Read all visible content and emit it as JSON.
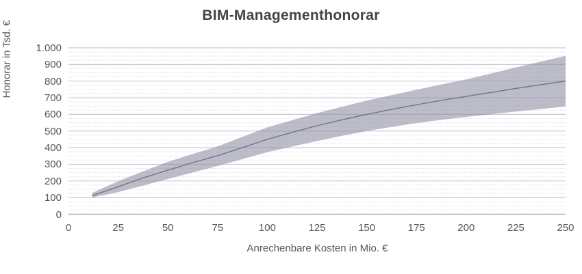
{
  "chart_data": {
    "type": "area",
    "title": "BIM-Managementhonorar",
    "xlabel": "Anrechenbare Kosten in Mio. €",
    "ylabel": "Honorar in Tsd. €",
    "xlim": [
      0,
      250
    ],
    "ylim": [
      0,
      1000
    ],
    "x_ticks": [
      0,
      25,
      50,
      75,
      100,
      125,
      150,
      175,
      200,
      225,
      250
    ],
    "x_tick_labels": [
      "0",
      "25",
      "50",
      "75",
      "100",
      "125",
      "150",
      "175",
      "200",
      "225",
      "250"
    ],
    "y_ticks": [
      0,
      100,
      200,
      300,
      400,
      500,
      600,
      700,
      800,
      900,
      1000
    ],
    "y_tick_labels": [
      "0",
      "100",
      "200",
      "300",
      "400",
      "500",
      "600",
      "700",
      "800",
      "900",
      "1.000"
    ],
    "grid": {
      "major_interval": 100,
      "minor_interval": 25,
      "vertical_gridlines": false
    },
    "legend": "none",
    "x": [
      12,
      25,
      37.5,
      50,
      62.5,
      75,
      87.5,
      100,
      112.5,
      125,
      137.5,
      150,
      162.5,
      175,
      187.5,
      200,
      212.5,
      225,
      237.5,
      250
    ],
    "series": [
      {
        "name": "lower-bound",
        "values": [
          100,
          133,
          172,
          212,
          251,
          290,
          331,
          373,
          407,
          440,
          471,
          500,
          525,
          548,
          567,
          585,
          601,
          617,
          632,
          648
        ]
      },
      {
        "name": "mid-line",
        "values": [
          112,
          165,
          218,
          265,
          310,
          352,
          401,
          450,
          492,
          532,
          567,
          600,
          630,
          658,
          684,
          708,
          732,
          756,
          778,
          800
        ]
      },
      {
        "name": "upper-bound",
        "values": [
          128,
          198,
          257,
          315,
          362,
          408,
          465,
          522,
          565,
          608,
          646,
          683,
          716,
          748,
          780,
          810,
          846,
          882,
          917,
          952
        ]
      }
    ],
    "colors": {
      "band_fill": "#8e8ea2",
      "band_opacity": 0.58,
      "mid_line": "#74747e",
      "major_gridline": "#c7c7d6",
      "minor_gridline": "#dcdce8",
      "zero_axis_line": "#b2b2c2",
      "title_text": "#42424c",
      "axis_text": "#54545e",
      "background": "#ffffff"
    }
  }
}
